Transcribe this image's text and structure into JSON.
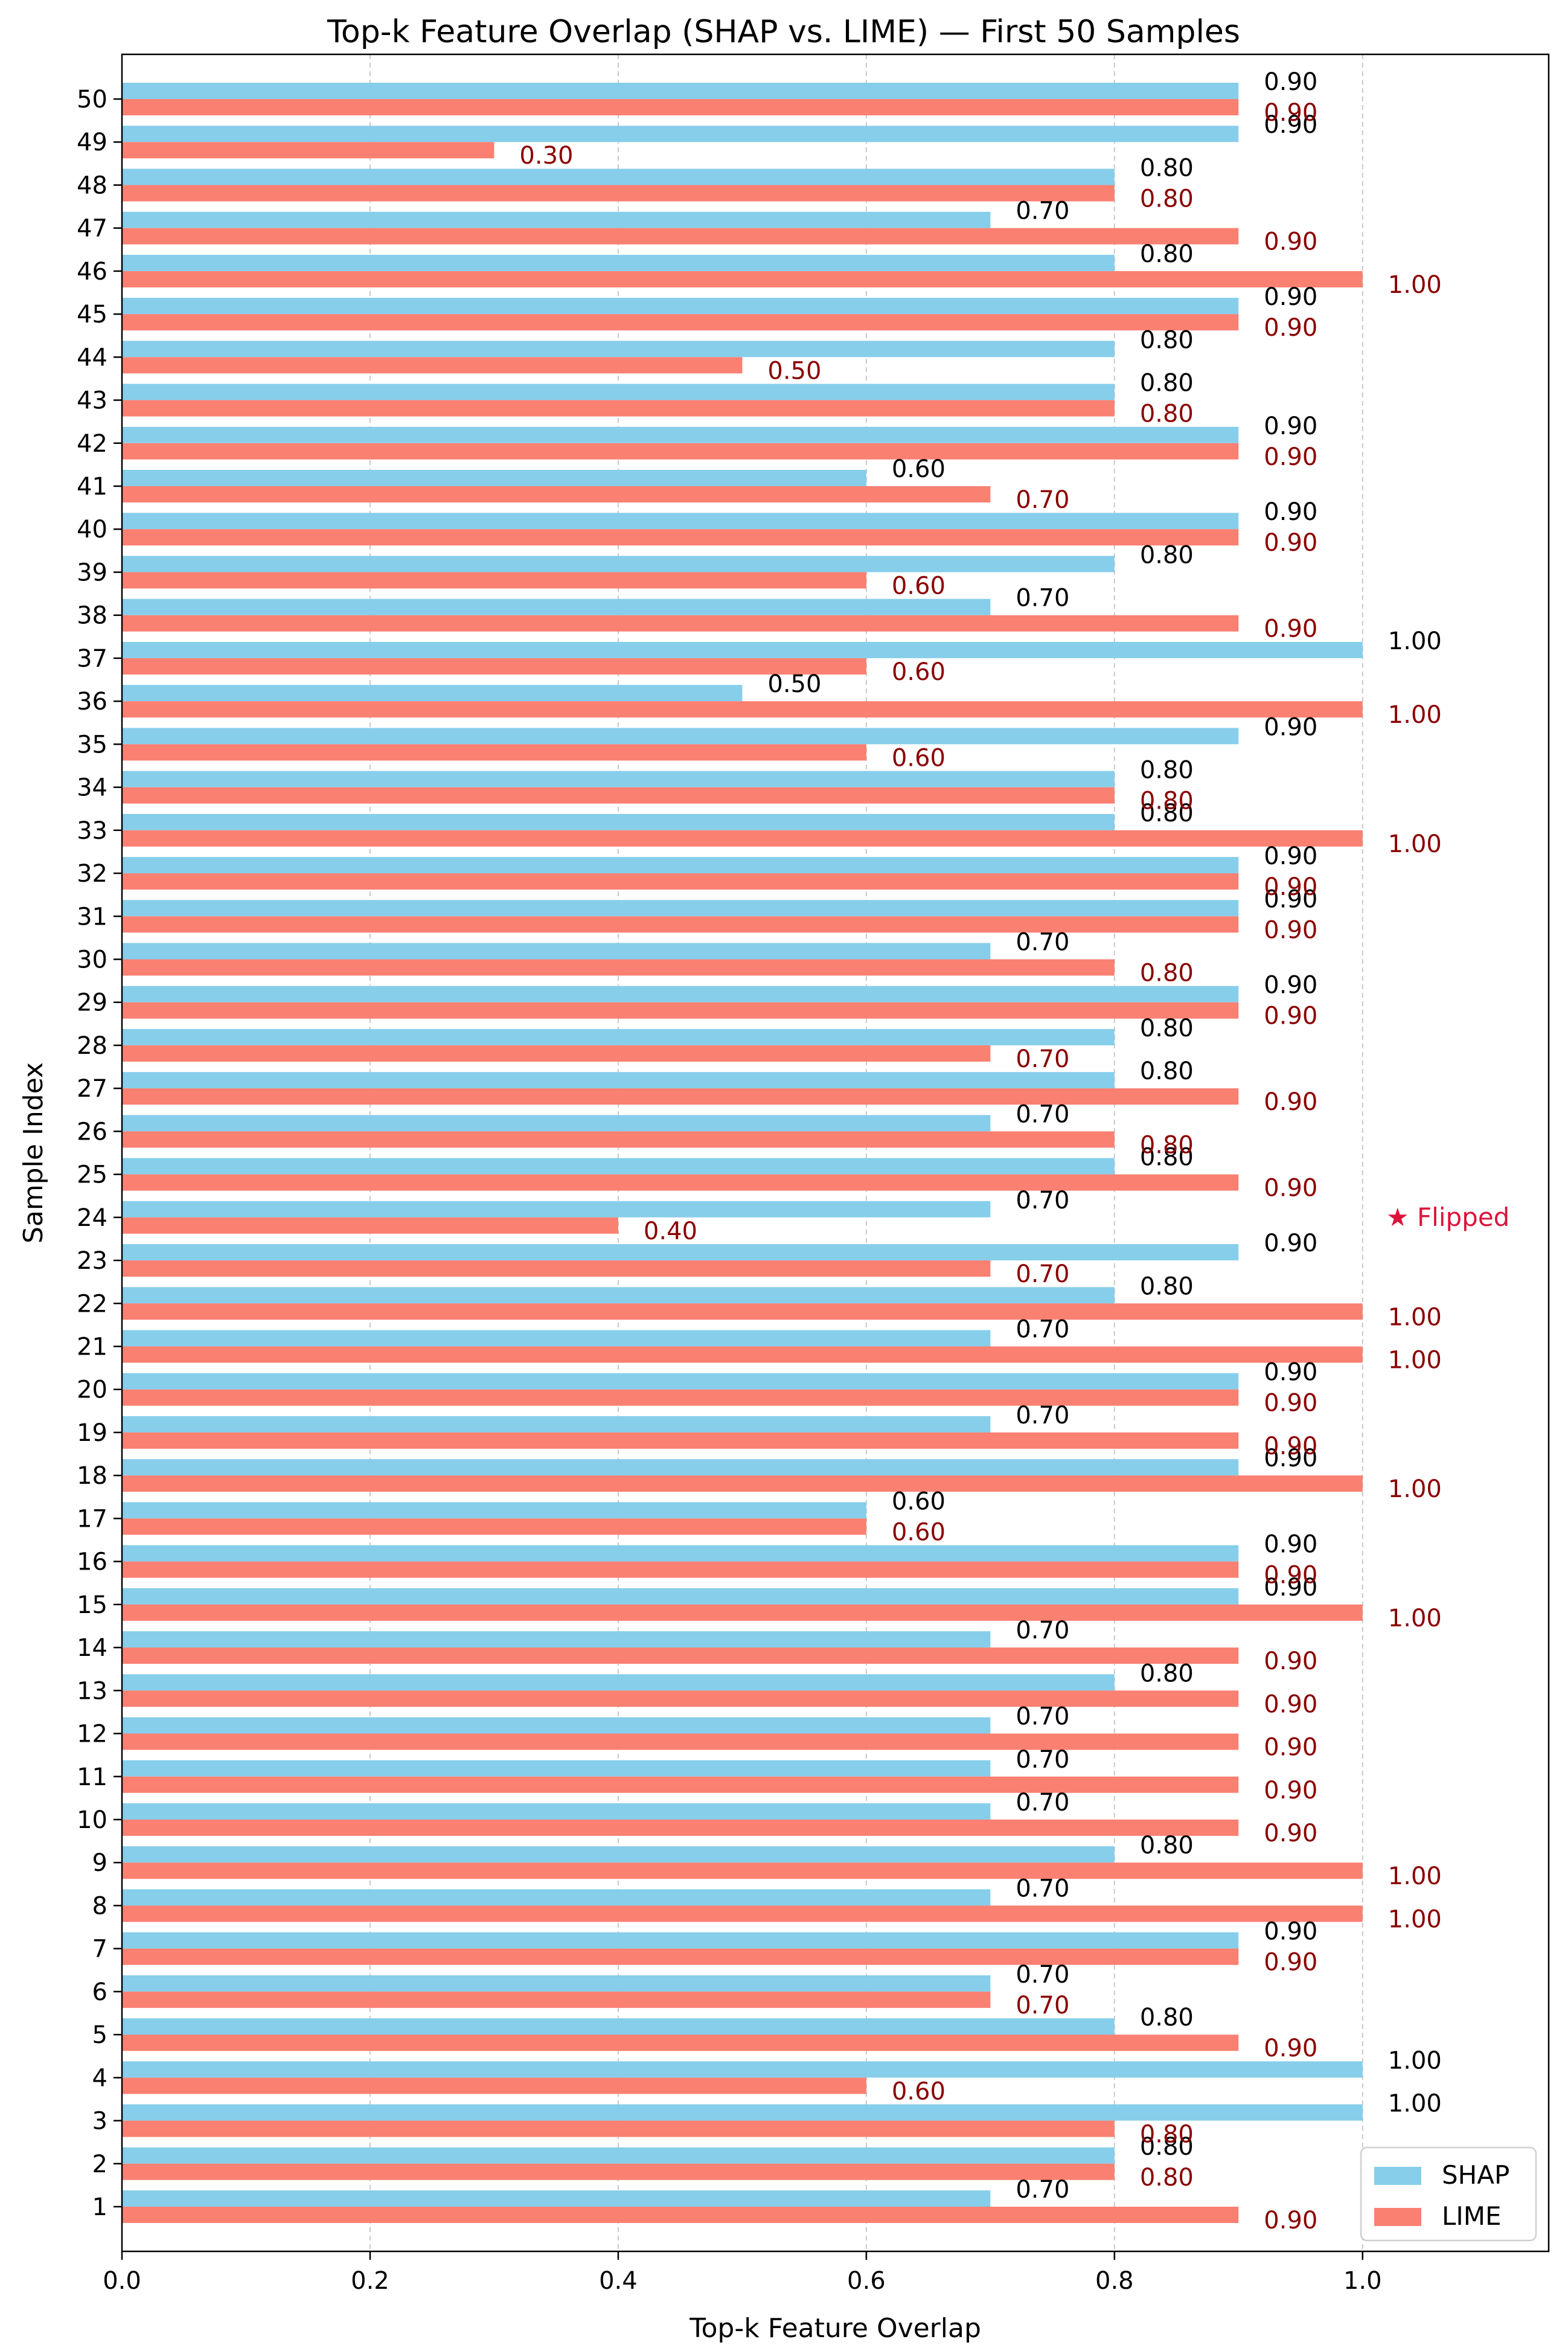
{
  "chart_data": {
    "type": "bar",
    "orientation": "horizontal",
    "title": "Top-k Feature Overlap (SHAP vs. LIME) — First 50 Samples",
    "xlabel": "Top-k Feature Overlap",
    "ylabel": "Sample Index",
    "xlim": [
      0.0,
      1.15
    ],
    "xticks": [
      "0.0",
      "0.2",
      "0.4",
      "0.6",
      "0.8",
      "1.0"
    ],
    "grid": "vertical dashed",
    "legend_position": "bottom-right",
    "categories": [
      "1",
      "2",
      "3",
      "4",
      "5",
      "6",
      "7",
      "8",
      "9",
      "10",
      "11",
      "12",
      "13",
      "14",
      "15",
      "16",
      "17",
      "18",
      "19",
      "20",
      "21",
      "22",
      "23",
      "24",
      "25",
      "26",
      "27",
      "28",
      "29",
      "30",
      "31",
      "32",
      "33",
      "34",
      "35",
      "36",
      "37",
      "38",
      "39",
      "40",
      "41",
      "42",
      "43",
      "44",
      "45",
      "46",
      "47",
      "48",
      "49",
      "50"
    ],
    "series": [
      {
        "name": "SHAP",
        "color": "#87ceeb",
        "label_color": "#000000",
        "values": [
          0.7,
          0.8,
          1.0,
          1.0,
          0.8,
          0.7,
          0.9,
          0.7,
          0.8,
          0.7,
          0.7,
          0.7,
          0.8,
          0.7,
          0.9,
          0.9,
          0.6,
          0.9,
          0.7,
          0.9,
          0.7,
          0.8,
          0.9,
          0.7,
          0.8,
          0.7,
          0.8,
          0.8,
          0.9,
          0.7,
          0.9,
          0.9,
          0.8,
          0.8,
          0.9,
          0.5,
          1.0,
          0.7,
          0.8,
          0.9,
          0.6,
          0.9,
          0.8,
          0.8,
          0.9,
          0.8,
          0.7,
          0.8,
          0.9,
          0.9
        ]
      },
      {
        "name": "LIME",
        "color": "#fa8072",
        "label_color": "#8b0000",
        "values": [
          0.9,
          0.8,
          0.8,
          0.6,
          0.9,
          0.7,
          0.9,
          1.0,
          1.0,
          0.9,
          0.9,
          0.9,
          0.9,
          0.9,
          1.0,
          0.9,
          0.6,
          1.0,
          0.9,
          0.9,
          1.0,
          1.0,
          0.7,
          0.4,
          0.9,
          0.8,
          0.9,
          0.7,
          0.9,
          0.8,
          0.9,
          0.9,
          1.0,
          0.8,
          0.6,
          1.0,
          0.6,
          0.9,
          0.6,
          0.9,
          0.7,
          0.9,
          0.8,
          0.5,
          0.9,
          1.0,
          0.9,
          0.8,
          0.3,
          0.9
        ]
      }
    ],
    "annotations": [
      {
        "sample": "24",
        "text": "★  Flipped",
        "color": "#dc143c"
      }
    ]
  }
}
